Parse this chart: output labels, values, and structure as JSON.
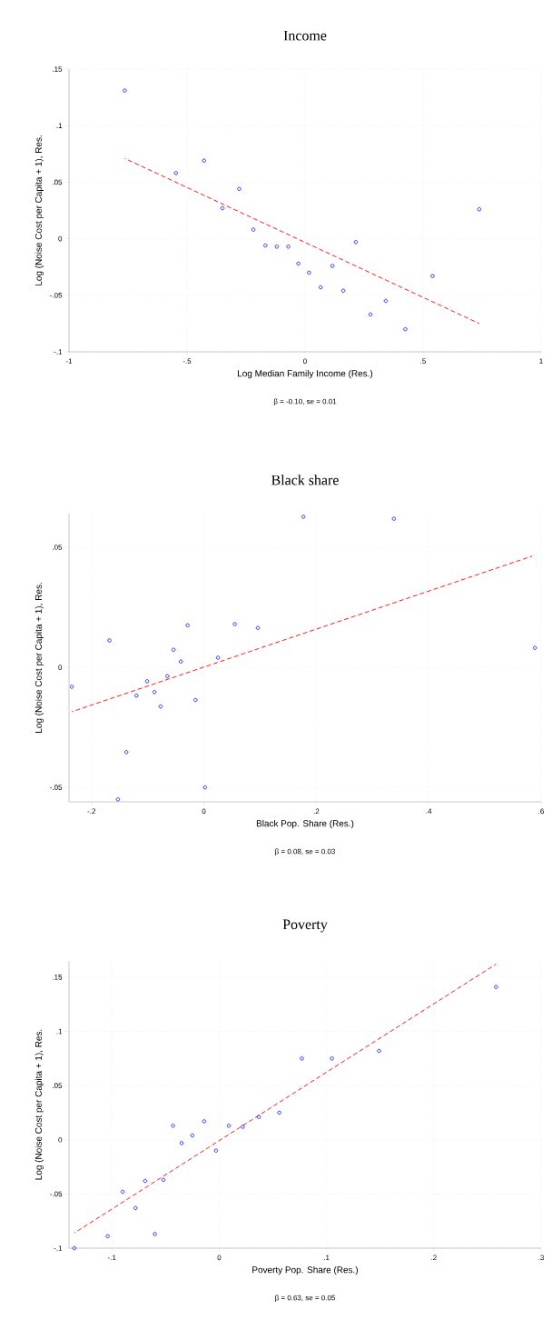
{
  "chart_data": [
    {
      "type": "scatter",
      "title": "Income",
      "xlabel": "Log Median Family Income (Res.)",
      "ylabel": "Log (Noise Cost per Capita + 1), Res.",
      "annotations": [
        "β = -0.10, se = 0.01"
      ],
      "grid": true,
      "xlim": [
        -1,
        1
      ],
      "ylim": [
        -0.1,
        0.15
      ],
      "xticks": [
        {
          "value": -1,
          "label": "-1"
        },
        {
          "value": -0.5,
          "label": "-.5"
        },
        {
          "value": 0,
          "label": "0"
        },
        {
          "value": 0.5,
          "label": ".5"
        },
        {
          "value": 1,
          "label": "1"
        }
      ],
      "yticks": [
        {
          "value": -0.1,
          "label": "-.1"
        },
        {
          "value": -0.05,
          "label": "-.05"
        },
        {
          "value": 0,
          "label": "0"
        },
        {
          "value": 0.05,
          "label": ".05"
        },
        {
          "value": 0.1,
          "label": ".1"
        },
        {
          "value": 0.15,
          "label": ".15"
        }
      ],
      "series": [
        {
          "type": "scatter",
          "marker": "circle",
          "color": "#0000ff",
          "x": [
            -0.764,
            -0.547,
            -0.428,
            -0.35,
            -0.279,
            -0.219,
            -0.168,
            -0.12,
            -0.071,
            -0.028,
            0.017,
            0.066,
            0.116,
            0.162,
            0.215,
            0.277,
            0.342,
            0.425,
            0.54,
            0.738
          ],
          "values": [
            0.131,
            0.058,
            0.069,
            0.027,
            0.044,
            0.008,
            -0.006,
            -0.007,
            -0.007,
            -0.022,
            -0.03,
            -0.043,
            -0.024,
            -0.046,
            -0.003,
            -0.067,
            -0.055,
            -0.08,
            -0.033,
            0.026
          ]
        },
        {
          "type": "line",
          "line_style": "dashed",
          "marker": "none",
          "color": "#ff0000",
          "x": [
            -0.764,
            0.738
          ],
          "values": [
            0.071,
            -0.075
          ]
        }
      ]
    },
    {
      "type": "scatter",
      "title": "Black share",
      "xlabel": "Black Pop. Share (Res.)",
      "ylabel": "Log (Noise Cost per Capita + 1), Res.",
      "annotations": [
        "β = 0.08, se = 0.03"
      ],
      "grid": true,
      "xlim": [
        -0.24,
        0.6
      ],
      "ylim": [
        -0.056,
        0.064
      ],
      "xticks": [
        {
          "value": -0.2,
          "label": "-.2"
        },
        {
          "value": 0,
          "label": "0"
        },
        {
          "value": 0.2,
          "label": ".2"
        },
        {
          "value": 0.4,
          "label": ".4"
        },
        {
          "value": 0.6,
          "label": ".6"
        }
      ],
      "yticks": [
        {
          "value": -0.05,
          "label": "-.05"
        },
        {
          "value": 0,
          "label": "0"
        },
        {
          "value": 0.05,
          "label": ".05"
        }
      ],
      "series": [
        {
          "type": "scatter",
          "marker": "circle",
          "color": "#0000ff",
          "x": [
            -0.235,
            -0.168,
            -0.153,
            -0.138,
            -0.12,
            -0.101,
            -0.088,
            -0.077,
            -0.065,
            -0.054,
            -0.041,
            -0.029,
            -0.015,
            0.002,
            0.025,
            0.055,
            0.096,
            0.177,
            0.338,
            0.589
          ],
          "values": [
            -0.0081,
            0.0112,
            -0.055,
            -0.0353,
            -0.0118,
            -0.0058,
            -0.0103,
            -0.0163,
            -0.0037,
            0.0073,
            0.0024,
            0.0175,
            -0.0136,
            -0.05,
            0.004,
            0.018,
            0.0164,
            0.0627,
            0.0619,
            0.0081
          ]
        },
        {
          "type": "line",
          "line_style": "dashed",
          "marker": "none",
          "color": "#ff0000",
          "x": [
            -0.235,
            0.584
          ],
          "values": [
            -0.0185,
            0.0463
          ]
        }
      ]
    },
    {
      "type": "scatter",
      "title": "Poverty",
      "xlabel": "Poverty Pop. Share (Res.)",
      "ylabel": "Log (Noise Cost per Capita + 1), Res.",
      "annotations": [
        "β = 0.63, se = 0.05"
      ],
      "grid": true,
      "xlim": [
        -0.14,
        0.3
      ],
      "ylim": [
        -0.1,
        0.165
      ],
      "xticks": [
        {
          "value": -0.1,
          "label": "-.1"
        },
        {
          "value": 0,
          "label": "0"
        },
        {
          "value": 0.1,
          "label": ".1"
        },
        {
          "value": 0.2,
          "label": ".2"
        },
        {
          "value": 0.3,
          "label": ".3"
        }
      ],
      "yticks": [
        {
          "value": -0.1,
          "label": "-.1"
        },
        {
          "value": -0.05,
          "label": "-.05"
        },
        {
          "value": 0,
          "label": "0"
        },
        {
          "value": 0.05,
          "label": ".05"
        },
        {
          "value": 0.1,
          "label": ".1"
        },
        {
          "value": 0.15,
          "label": ".15"
        }
      ],
      "series": [
        {
          "type": "scatter",
          "marker": "circle",
          "color": "#0000ff",
          "x": [
            -0.135,
            -0.104,
            -0.09,
            -0.078,
            -0.069,
            -0.06,
            -0.052,
            -0.043,
            -0.035,
            -0.025,
            -0.014,
            -0.003,
            0.009,
            0.022,
            0.037,
            0.056,
            0.077,
            0.105,
            0.149,
            0.258
          ],
          "values": [
            -0.1,
            -0.089,
            -0.048,
            -0.063,
            -0.038,
            -0.087,
            -0.037,
            0.013,
            -0.003,
            0.004,
            0.017,
            -0.01,
            0.013,
            0.012,
            0.021,
            0.025,
            0.075,
            0.075,
            0.082,
            0.141
          ]
        },
        {
          "type": "line",
          "line_style": "dashed",
          "marker": "none",
          "color": "#ff0000",
          "x": [
            -0.135,
            0.258
          ],
          "values": [
            -0.086,
            0.162
          ]
        }
      ]
    }
  ]
}
